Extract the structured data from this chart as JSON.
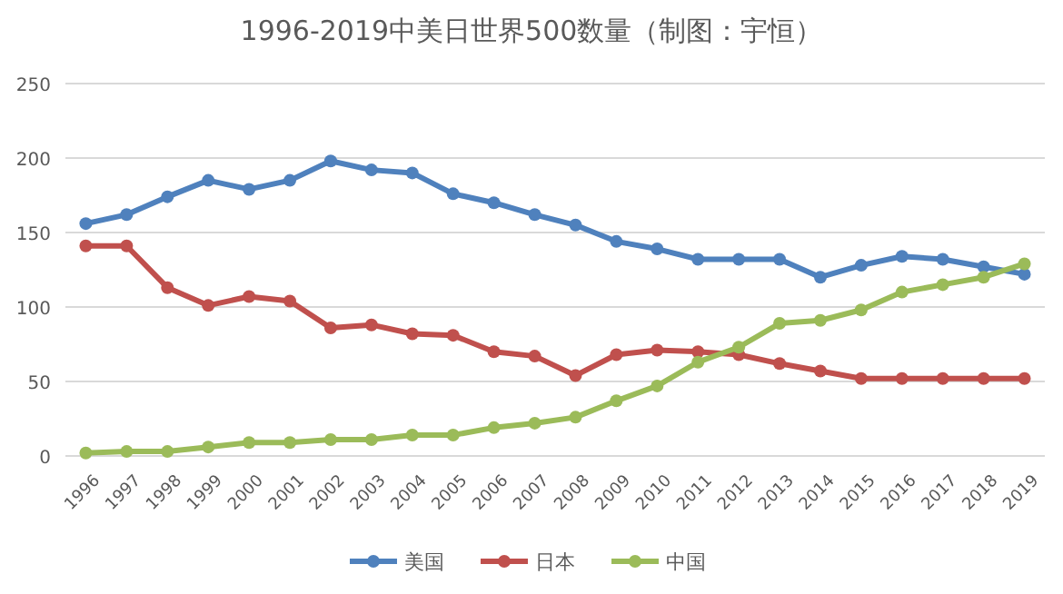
{
  "chart_data": {
    "type": "line",
    "title": "1996-2019中美日世界500数量（制图：宇恒）",
    "categories": [
      "1996",
      "1997",
      "1998",
      "1999",
      "2000",
      "2001",
      "2002",
      "2003",
      "2004",
      "2005",
      "2006",
      "2007",
      "2008",
      "2009",
      "2010",
      "2011",
      "2012",
      "2013",
      "2014",
      "2015",
      "2016",
      "2017",
      "2018",
      "2019"
    ],
    "series": [
      {
        "name": "美国",
        "color": "#4f81bd",
        "values": [
          156,
          162,
          174,
          185,
          179,
          185,
          198,
          192,
          190,
          176,
          170,
          162,
          155,
          144,
          139,
          132,
          132,
          132,
          120,
          128,
          134,
          132,
          127,
          122
        ]
      },
      {
        "name": "日本",
        "color": "#c0504d",
        "values": [
          141,
          141,
          113,
          101,
          107,
          104,
          86,
          88,
          82,
          81,
          70,
          67,
          54,
          68,
          71,
          70,
          68,
          62,
          57,
          52,
          52,
          52,
          52,
          52
        ]
      },
      {
        "name": "中国",
        "color": "#9bbb59",
        "values": [
          2,
          3,
          3,
          6,
          9,
          9,
          11,
          11,
          14,
          14,
          19,
          22,
          26,
          37,
          47,
          63,
          73,
          89,
          91,
          98,
          110,
          115,
          120,
          129
        ]
      }
    ],
    "ylim": [
      0,
      250
    ],
    "yticks": [
      0,
      50,
      100,
      150,
      200,
      250
    ],
    "grid": "y",
    "legend": "bottom",
    "marker": "circle",
    "line_style": "solid"
  }
}
